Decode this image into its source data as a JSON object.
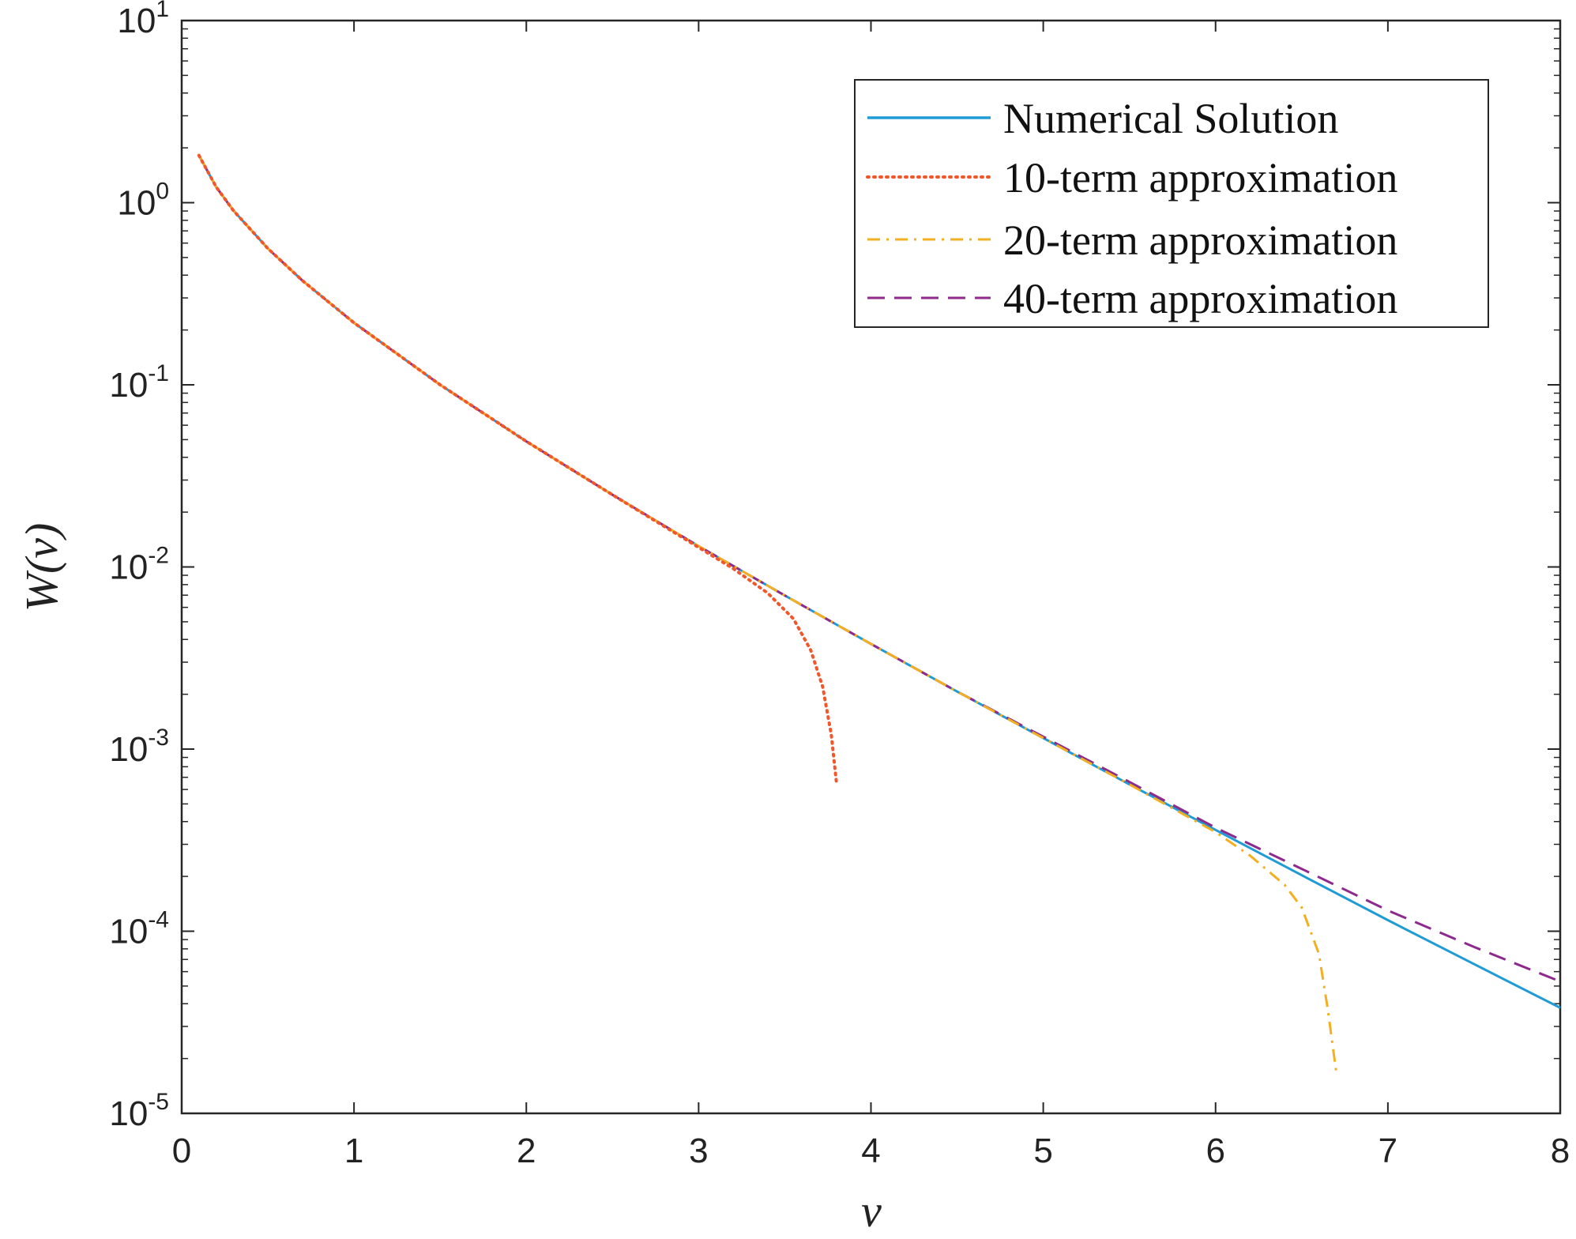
{
  "chart_data": {
    "type": "line",
    "xlabel": "v",
    "ylabel": "W(v)",
    "xlim": [
      0,
      8
    ],
    "ylim": [
      1e-05,
      10
    ],
    "yscale": "log",
    "grid": false,
    "legend_position": "top-right",
    "x_ticks": [
      {
        "value": 0,
        "label": "0"
      },
      {
        "value": 1,
        "label": "1"
      },
      {
        "value": 2,
        "label": "2"
      },
      {
        "value": 3,
        "label": "3"
      },
      {
        "value": 4,
        "label": "4"
      },
      {
        "value": 5,
        "label": "5"
      },
      {
        "value": 6,
        "label": "6"
      },
      {
        "value": 7,
        "label": "7"
      },
      {
        "value": 8,
        "label": "8"
      }
    ],
    "y_ticks": [
      {
        "value": 1e-05,
        "base": "10",
        "exp": "-5"
      },
      {
        "value": 0.0001,
        "base": "10",
        "exp": "-4"
      },
      {
        "value": 0.001,
        "base": "10",
        "exp": "-3"
      },
      {
        "value": 0.01,
        "base": "10",
        "exp": "-2"
      },
      {
        "value": 0.1,
        "base": "10",
        "exp": "-1"
      },
      {
        "value": 1,
        "base": "10",
        "exp": "0"
      },
      {
        "value": 10,
        "base": "10",
        "exp": "1"
      }
    ],
    "series": [
      {
        "name": "Numerical Solution",
        "color": "#1f9bd6",
        "dash": "solid",
        "x": [
          0.1,
          0.2,
          0.3,
          0.5,
          0.7,
          1.0,
          1.5,
          2.0,
          2.5,
          3.0,
          3.5,
          4.0,
          4.5,
          5.0,
          5.5,
          6.0,
          6.5,
          7.0,
          7.5,
          8.0
        ],
        "y": [
          1.82,
          1.22,
          0.906,
          0.56,
          0.374,
          0.219,
          0.1,
          0.0489,
          0.0249,
          0.013,
          0.00697,
          0.00378,
          0.00207,
          0.00115,
          0.00064,
          0.00036,
          0.000203,
          0.000115,
          6.6e-05,
          3.8e-05
        ]
      },
      {
        "name": "10-term approximation",
        "color": "#f2562b",
        "dash": "dotted",
        "x": [
          0.1,
          0.2,
          0.3,
          0.5,
          0.7,
          1.0,
          1.5,
          2.0,
          2.5,
          3.0,
          3.2,
          3.4,
          3.55,
          3.65,
          3.72,
          3.77,
          3.8
        ],
        "y": [
          1.82,
          1.22,
          0.906,
          0.56,
          0.374,
          0.219,
          0.1,
          0.0489,
          0.0249,
          0.0128,
          0.0098,
          0.0072,
          0.0052,
          0.0035,
          0.0022,
          0.0012,
          0.00065
        ]
      },
      {
        "name": "20-term approximation",
        "color": "#f2b021",
        "dash": "dashdot",
        "x": [
          0.1,
          0.2,
          0.3,
          0.5,
          0.7,
          1.0,
          1.5,
          2.0,
          2.5,
          3.0,
          3.5,
          4.0,
          4.5,
          5.0,
          5.5,
          6.0,
          6.2,
          6.4,
          6.5,
          6.6,
          6.65,
          6.7
        ],
        "y": [
          1.82,
          1.22,
          0.906,
          0.56,
          0.374,
          0.219,
          0.1,
          0.0489,
          0.0249,
          0.013,
          0.00697,
          0.00378,
          0.00207,
          0.00115,
          0.00064,
          0.00035,
          0.00026,
          0.00018,
          0.000135,
          7.5e-05,
          3.8e-05,
          1.7e-05
        ]
      },
      {
        "name": "40-term approximation",
        "color": "#8e2a8e",
        "dash": "dashed",
        "x": [
          0.1,
          0.2,
          0.3,
          0.5,
          0.7,
          1.0,
          1.5,
          2.0,
          2.5,
          3.0,
          3.5,
          4.0,
          4.5,
          5.0,
          5.5,
          6.0,
          6.5,
          7.0,
          7.5,
          8.0
        ],
        "y": [
          1.82,
          1.22,
          0.906,
          0.56,
          0.374,
          0.219,
          0.1,
          0.0489,
          0.0249,
          0.013,
          0.00697,
          0.00378,
          0.00207,
          0.00117,
          0.00066,
          0.00037,
          0.00022,
          0.00013,
          8.2e-05,
          5.3e-05
        ]
      }
    ]
  }
}
